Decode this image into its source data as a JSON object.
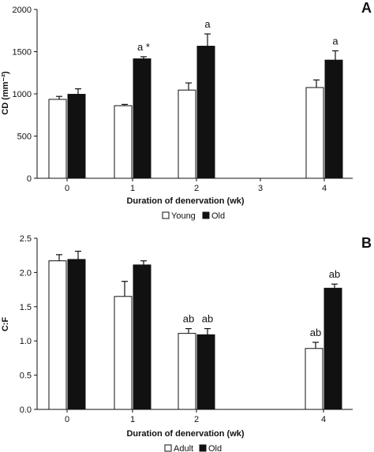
{
  "chart_data": [
    {
      "type": "bar",
      "panel_label": "A",
      "ylabel": "CD (mm⁻²)",
      "xlabel": "Duration of denervation (wk)",
      "ylim": [
        0,
        2000
      ],
      "yticks": [
        "0",
        "500",
        "1000",
        "1500",
        "2000"
      ],
      "categories": [
        "0",
        "1",
        "2",
        "3",
        "4"
      ],
      "series": [
        {
          "name": "Young",
          "color": "#ffffff",
          "values": [
            935,
            860,
            1045,
            null,
            1075
          ],
          "errors": [
            35,
            15,
            85,
            null,
            90
          ]
        },
        {
          "name": "Old",
          "color": "#111111",
          "values": [
            995,
            1415,
            1565,
            null,
            1400
          ],
          "errors": [
            65,
            25,
            145,
            null,
            110
          ]
        }
      ],
      "annotations": [
        {
          "category": "1",
          "series": "Old",
          "text": "a *"
        },
        {
          "category": "2",
          "series": "Old",
          "text": "a"
        },
        {
          "category": "4",
          "series": "Old",
          "text": "a"
        }
      ],
      "legend": [
        "Young",
        "Old"
      ],
      "legend_position": "bottom",
      "grid": false
    },
    {
      "type": "bar",
      "panel_label": "B",
      "ylabel": "C:F",
      "xlabel": "Duration of denervation (wk)",
      "ylim": [
        0,
        2.5
      ],
      "yticks": [
        "0.0",
        "0.5",
        "1.0",
        "1.5",
        "2.0",
        "2.5"
      ],
      "categories": [
        "0",
        "1",
        "2",
        "4"
      ],
      "series": [
        {
          "name": "Adult",
          "color": "#ffffff",
          "values": [
            2.17,
            1.65,
            1.11,
            0.89
          ],
          "errors": [
            0.09,
            0.22,
            0.07,
            0.09
          ]
        },
        {
          "name": "Old",
          "color": "#111111",
          "values": [
            2.19,
            2.11,
            1.09,
            1.77
          ],
          "errors": [
            0.12,
            0.06,
            0.09,
            0.06
          ]
        }
      ],
      "annotations": [
        {
          "category": "2",
          "series": "Adult",
          "text": "ab"
        },
        {
          "category": "2",
          "series": "Old",
          "text": "ab"
        },
        {
          "category": "4",
          "series": "Adult",
          "text": "ab"
        },
        {
          "category": "4",
          "series": "Old",
          "text": "ab"
        }
      ],
      "legend": [
        "Adult",
        "Old"
      ],
      "legend_position": "bottom",
      "grid": false
    }
  ]
}
